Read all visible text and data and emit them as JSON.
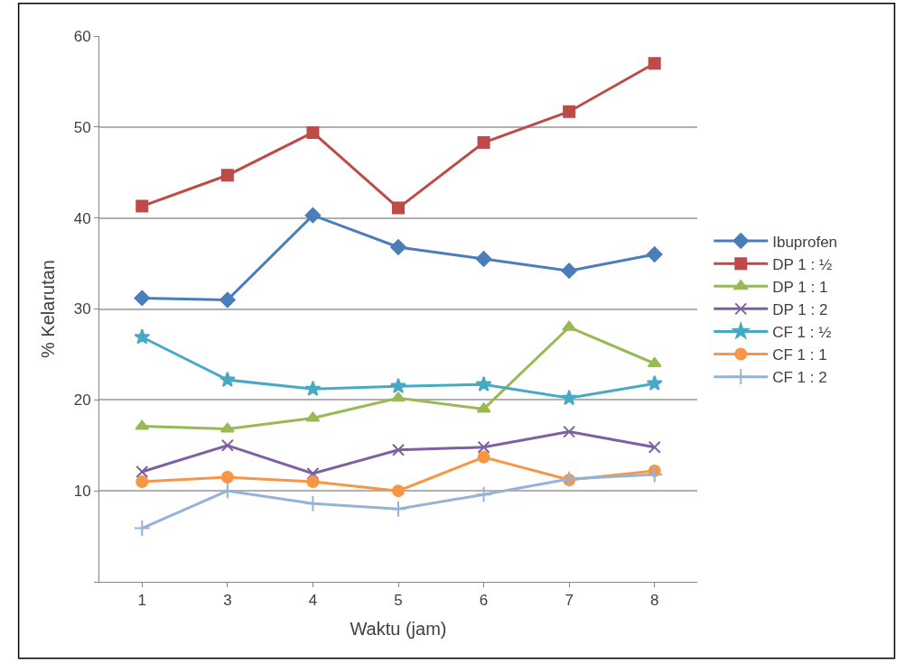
{
  "chart_data": {
    "type": "line",
    "xlabel": "Waktu (jam)",
    "ylabel": "% Kelarutan",
    "categories": [
      "1",
      "3",
      "4",
      "5",
      "6",
      "7",
      "8"
    ],
    "ylim": [
      0,
      60
    ],
    "yticks": [
      {
        "value": 0,
        "label": null
      },
      10,
      20,
      30,
      40,
      50,
      60
    ],
    "grid": "y",
    "legend": "right",
    "series": [
      {
        "name": "Ibuprofen",
        "color": "#4a7ebb",
        "marker": "diamond",
        "values": [
          31.2,
          31.0,
          40.3,
          36.8,
          35.5,
          34.2,
          36.0
        ]
      },
      {
        "name": "DP 1 : ½",
        "color": "#be4b48",
        "marker": "square",
        "values": [
          41.3,
          44.7,
          49.4,
          41.1,
          48.3,
          51.7,
          57.0
        ]
      },
      {
        "name": "DP 1 : 1",
        "color": "#98b954",
        "marker": "triangle",
        "values": [
          17.1,
          16.8,
          18.0,
          20.2,
          19.0,
          28.0,
          24.0
        ]
      },
      {
        "name": "DP 1 : 2",
        "color": "#7d60a0",
        "marker": "x",
        "values": [
          12.1,
          15.0,
          11.9,
          14.5,
          14.8,
          16.5,
          14.8
        ]
      },
      {
        "name": "CF 1 : ½",
        "color": "#46aac5",
        "marker": "star",
        "values": [
          26.9,
          22.2,
          21.2,
          21.5,
          21.7,
          20.2,
          21.8
        ]
      },
      {
        "name": "CF 1 : 1",
        "color": "#f79646",
        "marker": "circle",
        "values": [
          11.0,
          11.5,
          11.0,
          10.0,
          13.7,
          11.2,
          12.2
        ]
      },
      {
        "name": "CF 1 : 2",
        "color": "#95b3d7",
        "marker": "cross",
        "values": [
          5.9,
          10.0,
          8.6,
          8.0,
          9.6,
          11.3,
          11.8
        ]
      }
    ]
  }
}
